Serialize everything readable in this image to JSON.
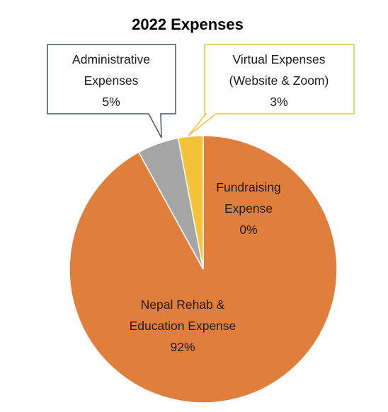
{
  "chart_data": {
    "type": "pie",
    "title": "2022 Expenses",
    "categories": [
      "Nepal Rehab & Education Expense",
      "Administrative Expenses",
      "Virtual Expenses (Website & Zoom)",
      "Fundraising Expense"
    ],
    "values": [
      92,
      5,
      3,
      0
    ],
    "slices": [
      {
        "label_lines": [
          "Nepal Rehab &",
          "Education Expense"
        ],
        "percent_label": "92%",
        "value": 92,
        "color": "#e07f3c"
      },
      {
        "label_lines": [
          "Administrative",
          "Expenses"
        ],
        "percent_label": "5%",
        "value": 5,
        "color": "#a5a5a5",
        "callout_border": "#44546a"
      },
      {
        "label_lines": [
          "Virtual Expenses",
          "(Website & Zoom)"
        ],
        "percent_label": "3%",
        "value": 3,
        "color": "#f3c13a",
        "callout_border": "#f3c13a"
      },
      {
        "label_lines": [
          "Fundraising",
          "Expense"
        ],
        "percent_label": "0%",
        "value": 0,
        "color": "#4472c4"
      }
    ],
    "legend": "none",
    "data_labels": "category and percent"
  }
}
